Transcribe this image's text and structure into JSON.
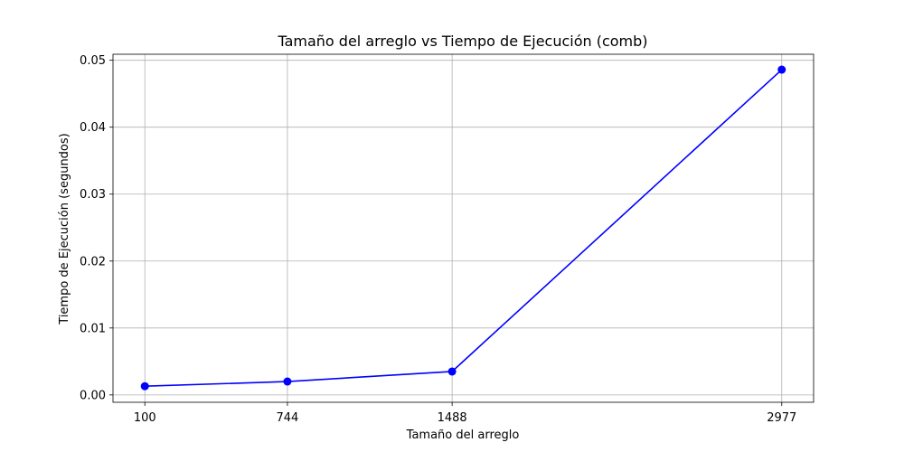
{
  "chart_data": {
    "type": "line",
    "title": "Tamaño del arreglo vs Tiempo de Ejecución (comb)",
    "xlabel": "Tamaño del arreglo",
    "ylabel": "Tiempo de Ejecución (segundos)",
    "x": [
      100,
      744,
      1488,
      2977
    ],
    "x_tick_labels": [
      "100",
      "744",
      "1488",
      "2977"
    ],
    "y_ticks": [
      0.0,
      0.01,
      0.02,
      0.03,
      0.04,
      0.05
    ],
    "y_tick_labels": [
      "0.00",
      "0.01",
      "0.02",
      "0.03",
      "0.04",
      "0.05"
    ],
    "xlim": [
      -43.85,
      3120.85
    ],
    "ylim": [
      -0.0011,
      0.0509
    ],
    "grid": true,
    "series": [
      {
        "values": [
          0.0013,
          0.002,
          0.0035,
          0.0486
        ],
        "color": "#0000ff",
        "marker": "circle"
      }
    ]
  }
}
